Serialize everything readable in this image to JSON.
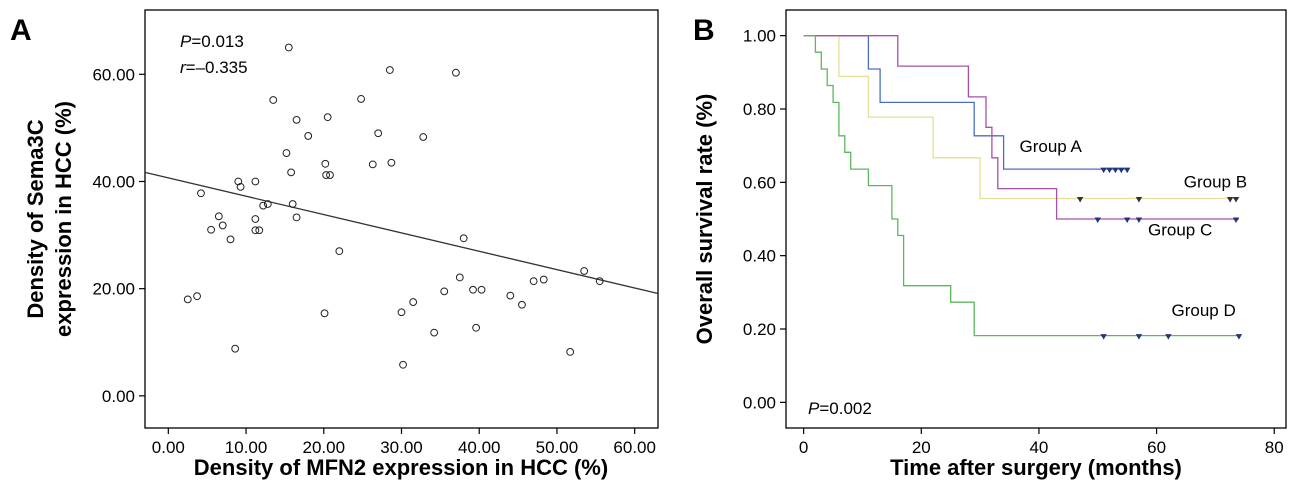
{
  "chart_data": [
    {
      "panel": "A",
      "type": "scatter",
      "xlabel": "Density of MFN2 expression in HCC (%)",
      "ylabel_lines": [
        "Density of Sema3C",
        "expression in HCC (%)"
      ],
      "xlim": [
        -3,
        63
      ],
      "ylim": [
        -6,
        72
      ],
      "xticks": [
        "0.00",
        "10.00",
        "20.00",
        "30.00",
        "40.00",
        "50.00",
        "60.00"
      ],
      "yticks": [
        "0.00",
        "20.00",
        "40.00",
        "60.00"
      ],
      "annotations": [
        {
          "italic": "P",
          "text": "=0.013"
        },
        {
          "italic": "r",
          "text": "=–0.335"
        }
      ],
      "regression_line": {
        "x": [
          -3,
          63
        ],
        "y": [
          41.7,
          19.1
        ]
      },
      "points": [
        [
          15.5,
          65.0
        ],
        [
          28.5,
          60.8
        ],
        [
          37.0,
          60.3
        ],
        [
          13.5,
          55.2
        ],
        [
          24.8,
          55.4
        ],
        [
          16.5,
          51.5
        ],
        [
          20.5,
          52.0
        ],
        [
          27.0,
          49.0
        ],
        [
          18.0,
          48.5
        ],
        [
          32.8,
          48.3
        ],
        [
          15.2,
          45.3
        ],
        [
          20.2,
          43.3
        ],
        [
          26.3,
          43.2
        ],
        [
          28.7,
          43.5
        ],
        [
          15.8,
          41.7
        ],
        [
          20.3,
          41.2
        ],
        [
          20.8,
          41.2
        ],
        [
          9.0,
          40.0
        ],
        [
          11.2,
          40.0
        ],
        [
          9.3,
          39.0
        ],
        [
          4.2,
          37.8
        ],
        [
          12.2,
          35.5
        ],
        [
          12.8,
          35.8
        ],
        [
          16.0,
          35.8
        ],
        [
          6.5,
          33.5
        ],
        [
          11.2,
          33.0
        ],
        [
          16.5,
          33.3
        ],
        [
          7.0,
          31.8
        ],
        [
          5.5,
          31.0
        ],
        [
          11.2,
          30.9
        ],
        [
          11.7,
          30.9
        ],
        [
          8.0,
          29.2
        ],
        [
          38.0,
          29.4
        ],
        [
          22.0,
          27.0
        ],
        [
          37.5,
          22.1
        ],
        [
          53.5,
          23.3
        ],
        [
          47.0,
          21.4
        ],
        [
          48.3,
          21.7
        ],
        [
          55.5,
          21.4
        ],
        [
          35.5,
          19.5
        ],
        [
          39.2,
          19.8
        ],
        [
          40.3,
          19.8
        ],
        [
          44.0,
          18.7
        ],
        [
          3.7,
          18.6
        ],
        [
          2.5,
          18.0
        ],
        [
          31.5,
          17.5
        ],
        [
          45.5,
          17.0
        ],
        [
          30.0,
          15.6
        ],
        [
          20.1,
          15.4
        ],
        [
          39.6,
          12.7
        ],
        [
          34.2,
          11.8
        ],
        [
          8.6,
          8.8
        ],
        [
          51.7,
          8.2
        ],
        [
          30.2,
          5.8
        ]
      ]
    },
    {
      "panel": "B",
      "type": "line",
      "subtype": "kaplan-meier step",
      "xlabel": "Time after surgery (months)",
      "ylabel": "Overall survival rate (%)",
      "xlim": [
        -3,
        82
      ],
      "ylim": [
        -0.07,
        1.07
      ],
      "xticks": [
        "0",
        "20",
        "40",
        "60",
        "80"
      ],
      "yticks": [
        "0.00",
        "0.20",
        "0.40",
        "0.60",
        "0.80",
        "1.00"
      ],
      "annotation": {
        "italic": "P",
        "text": "=0.002"
      },
      "series": [
        {
          "name": "Group A",
          "color": "#4a6fc0",
          "steps": [
            [
              0,
              1.0
            ],
            [
              11,
              0.909
            ],
            [
              13,
              0.818
            ],
            [
              29,
              0.727
            ],
            [
              34,
              0.636
            ],
            [
              55,
              0.636
            ]
          ],
          "censored": [
            [
              51,
              0.636
            ],
            [
              52,
              0.636
            ],
            [
              53,
              0.636
            ],
            [
              54,
              0.636
            ],
            [
              55,
              0.636
            ]
          ],
          "label_pos": [
            42,
            0.683
          ]
        },
        {
          "name": "Group B",
          "color": "#e3df98",
          "steps": [
            [
              0,
              1.0
            ],
            [
              6,
              0.889
            ],
            [
              11,
              0.778
            ],
            [
              22,
              0.667
            ],
            [
              30,
              0.556
            ],
            [
              74,
              0.556
            ]
          ],
          "censored": [
            [
              47,
              0.556
            ],
            [
              57,
              0.556
            ],
            [
              72.5,
              0.556
            ],
            [
              73.5,
              0.556
            ]
          ],
          "label_pos": [
            70,
            0.586
          ]
        },
        {
          "name": "Group C",
          "color": "#a650a8",
          "steps": [
            [
              0,
              1.0
            ],
            [
              16,
              0.917
            ],
            [
              28,
              0.833
            ],
            [
              31,
              0.75
            ],
            [
              32,
              0.667
            ],
            [
              33,
              0.583
            ],
            [
              43,
              0.5
            ],
            [
              74,
              0.5
            ]
          ],
          "censored": [
            [
              50,
              0.5
            ],
            [
              55,
              0.5
            ],
            [
              57,
              0.5
            ],
            [
              73.5,
              0.5
            ]
          ],
          "label_pos": [
            64,
            0.455
          ]
        },
        {
          "name": "Group D",
          "color": "#5cb85c",
          "steps": [
            [
              0,
              1.0
            ],
            [
              2,
              0.955
            ],
            [
              3,
              0.909
            ],
            [
              4,
              0.864
            ],
            [
              5,
              0.818
            ],
            [
              6,
              0.727
            ],
            [
              7,
              0.682
            ],
            [
              8,
              0.636
            ],
            [
              11,
              0.591
            ],
            [
              15,
              0.5
            ],
            [
              16,
              0.455
            ],
            [
              17,
              0.318
            ],
            [
              25,
              0.273
            ],
            [
              29,
              0.182
            ],
            [
              74,
              0.182
            ]
          ],
          "censored": [
            [
              51,
              0.182
            ],
            [
              57,
              0.182
            ],
            [
              62,
              0.182
            ],
            [
              74,
              0.182
            ]
          ],
          "label_pos": [
            68,
            0.235
          ]
        }
      ]
    }
  ],
  "labels": {
    "panel_a": "A",
    "panel_b": "B"
  }
}
